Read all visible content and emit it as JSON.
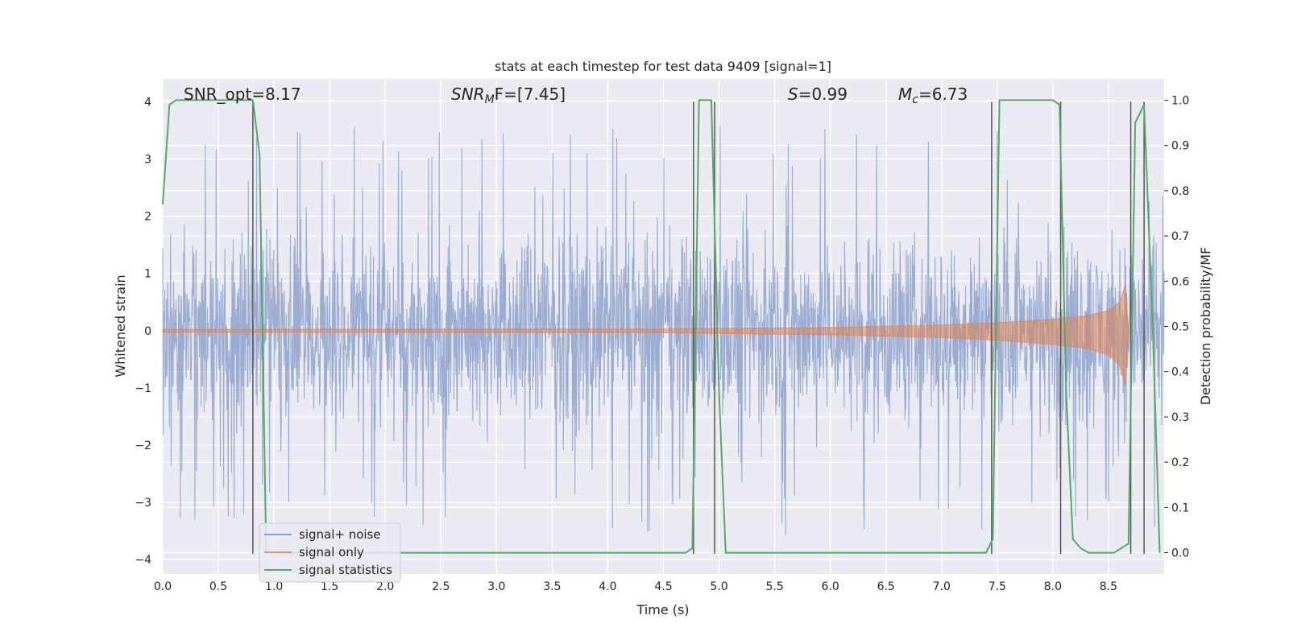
{
  "chart_data": {
    "type": "line",
    "title": "stats at each timestep for test data 9409 [signal=1]",
    "xlabel": "Time (s)",
    "ylabel": "Whitened strain",
    "ylabel_right": "Detection probability/MF",
    "xlim": [
      0.0,
      9.0
    ],
    "ylim": [
      -4.25,
      4.4
    ],
    "ylim_right": [
      -0.047,
      1.047
    ],
    "x_ticks": [
      "0.0",
      "0.5",
      "1.0",
      "1.5",
      "2.0",
      "2.5",
      "3.0",
      "3.5",
      "4.0",
      "4.5",
      "5.0",
      "5.5",
      "6.0",
      "6.5",
      "7.0",
      "7.5",
      "8.0",
      "8.5"
    ],
    "y_ticks": [
      "−4",
      "−3",
      "−2",
      "−1",
      "0",
      "1",
      "2",
      "3",
      "4"
    ],
    "y_ticks_right": [
      "0.0",
      "0.1",
      "0.2",
      "0.3",
      "0.4",
      "0.5",
      "0.6",
      "0.7",
      "0.8",
      "0.9",
      "1.0"
    ],
    "grid": true,
    "legend_position": "lower-left",
    "annotations": {
      "snr_opt": "SNR_opt=8.17",
      "snr_mf_italic": "SNR",
      "snr_mf_sub": "M",
      "snr_mf_rest": "F=[7.45]",
      "s_italic": "S",
      "s_rest": "=0.99",
      "mc_italic": "M",
      "mc_sub": "c",
      "mc_rest": "=6.73"
    },
    "series": [
      {
        "name": "signal+ noise",
        "color": "#8da0cb",
        "description": "whitened strain noise, roughly ±2 with spikes to ±3.7",
        "envelope_approx": {
          "x": [
            0.0,
            9.0
          ],
          "y_min": -3.8,
          "y_max": 3.7
        }
      },
      {
        "name": "signal only",
        "color": "#dd8452",
        "description": "chirp envelope (amplitude vs time)",
        "x": [
          0.0,
          4.5,
          6.0,
          7.0,
          7.5,
          8.0,
          8.3,
          8.5,
          8.6,
          8.65,
          8.68
        ],
        "amplitude": [
          0.02,
          0.03,
          0.06,
          0.1,
          0.14,
          0.2,
          0.26,
          0.35,
          0.5,
          0.8,
          0.0
        ]
      },
      {
        "name": "signal statistics",
        "color": "#55a868",
        "axis": "right",
        "x": [
          0.0,
          0.06,
          0.12,
          0.75,
          0.81,
          0.87,
          0.93,
          4.7,
          4.76,
          4.82,
          4.93,
          5.0,
          5.06,
          7.4,
          7.46,
          7.52,
          7.58,
          8.0,
          8.06,
          8.12,
          8.18,
          8.25,
          8.32,
          8.4,
          8.55,
          8.68,
          8.74,
          8.82,
          8.9,
          8.96
        ],
        "values": [
          0.77,
          0.99,
          1.0,
          1.0,
          1.0,
          0.88,
          0.0,
          0.0,
          0.01,
          1.0,
          1.0,
          0.35,
          0.0,
          0.0,
          0.03,
          1.0,
          1.0,
          1.0,
          0.99,
          0.35,
          0.03,
          0.01,
          0.0,
          0.0,
          0.0,
          0.02,
          0.95,
          0.99,
          0.48,
          0.0
        ]
      }
    ],
    "vertical_markers_x": [
      0.81,
      4.77,
      4.96,
      7.45,
      8.07,
      8.7,
      8.82
    ],
    "legend": {
      "signal_noise": "signal+ noise",
      "signal_only": "signal only",
      "signal_statistics": "signal statistics"
    }
  }
}
